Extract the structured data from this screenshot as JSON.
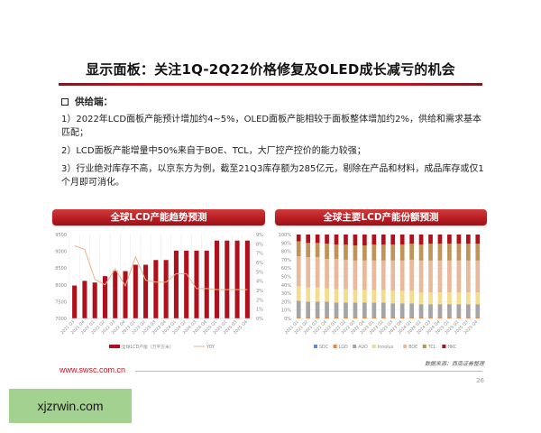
{
  "header": {
    "title": "显示面板：关注1Q-2Q22价格修复及OLED成长减亏的机会"
  },
  "section": {
    "label": "供给端：",
    "bullet_icon": "checkbox-square-icon",
    "paragraphs": [
      "1）2022年LCD面板产能预计增加约4~5%，OLED面板产能相较于面板整体增加约2%，供给和需求基本匹配；",
      "2）LCD面板产能增量中50%来自于BOE、TCL，大厂控产控价的能力较强；",
      "3）行业绝对库存不高，以京东方为例，截至21Q3库存额为285亿元，剔除在产品和材料，成品库存或仅1个月即可消化。"
    ]
  },
  "charts": {
    "left_title": "全球LCD产能趋势预测",
    "right_title": "全球主要LCD产能份额预测"
  },
  "chart_data": [
    {
      "type": "bar",
      "title": "全球LCD产能趋势预测",
      "categories": [
        "2021 Q3",
        "2021 Q4",
        "2022 Q1",
        "2022 Q2",
        "2022 Q3",
        "2022 Q4",
        "2023 Q1",
        "2023 Q2",
        "2023 Q3",
        "2023 Q4",
        "2024 Q1",
        "2024 Q2",
        "2024 Q3",
        "2024 Q4",
        "2025 Q1",
        "2025 Q2",
        "2025 Q3",
        "2025 Q4"
      ],
      "series": [
        {
          "name": "全球LCD产能（万平方米）",
          "type": "bar",
          "axis": "left",
          "color": "#b0101c",
          "values": [
            7980,
            8120,
            8070,
            8260,
            8420,
            8410,
            8600,
            8600,
            8740,
            8740,
            9020,
            9020,
            9020,
            9020,
            9320,
            9320,
            9320,
            9320
          ]
        },
        {
          "name": "YOY",
          "type": "line",
          "axis": "right",
          "color": "#e8b48a",
          "values": [
            7.8,
            7.4,
            4.2,
            3.6,
            5.3,
            3.5,
            6.6,
            4.1,
            3.9,
            3.9,
            4.8,
            4.8,
            3.2,
            3.2,
            3.1,
            3.1,
            3.1,
            3.1
          ]
        }
      ],
      "ylim": [
        7000,
        9500
      ],
      "yticks": [
        7000,
        7500,
        8000,
        8500,
        9000,
        9500
      ],
      "y2lim": [
        0,
        9
      ],
      "y2ticks": [
        "0%",
        "1%",
        "2%",
        "3%",
        "4%",
        "5%",
        "6%",
        "7%",
        "8%",
        "9%"
      ],
      "legend": [
        "全球LCD产能（万平方米）",
        "YOY"
      ],
      "legend_position": "bottom",
      "grid": true
    },
    {
      "type": "bar",
      "stacked": true,
      "percent": true,
      "title": "全球主要LCD产能份额预测",
      "categories": [
        "2021 Q1",
        "2021 Q2",
        "2021 Q3",
        "2021 Q4",
        "2022 Q1",
        "2022 Q2",
        "2022 Q3",
        "2022 Q4",
        "2023 Q1",
        "2023 Q2",
        "2023 Q3",
        "2023 Q4",
        "2024 Q1",
        "2024 Q2",
        "2024 Q3",
        "2024 Q4",
        "2025 Q1",
        "2025 Q2",
        "2025 Q3",
        "2025 Q4"
      ],
      "series": [
        {
          "name": "SDC",
          "color": "#5b8fc9",
          "values": [
            0,
            0,
            0,
            0,
            0,
            0,
            0,
            0,
            0,
            0,
            0,
            0,
            0,
            0,
            0,
            0,
            0,
            0,
            0,
            0
          ]
        },
        {
          "name": "LGD",
          "color": "#e8874a",
          "values": [
            2,
            2,
            2,
            2,
            2,
            2,
            2,
            2,
            2,
            2,
            2,
            2,
            2,
            2,
            2,
            2,
            2,
            2,
            2,
            2
          ]
        },
        {
          "name": "AUO",
          "color": "#a5a5a5",
          "values": [
            19,
            18,
            18,
            18,
            17,
            17,
            17,
            17,
            17,
            17,
            16,
            16,
            16,
            15,
            15,
            15,
            15,
            15,
            15,
            15
          ]
        },
        {
          "name": "Innolux",
          "color": "#f3dc8a",
          "values": [
            17,
            17,
            17,
            16,
            16,
            16,
            15,
            15,
            15,
            15,
            15,
            15,
            15,
            14,
            14,
            14,
            14,
            14,
            14,
            14
          ]
        },
        {
          "name": "BOE",
          "color": "#eab89a",
          "values": [
            36,
            36,
            36,
            35,
            36,
            35,
            35,
            35,
            35,
            35,
            36,
            36,
            37,
            38,
            38,
            38,
            38,
            38,
            38,
            38
          ]
        },
        {
          "name": "TCL",
          "color": "#bf9456",
          "values": [
            18,
            17,
            17,
            18,
            17,
            18,
            18,
            18,
            19,
            19,
            19,
            19,
            19,
            19,
            20,
            20,
            20,
            20,
            20,
            20
          ]
        },
        {
          "name": "HKC",
          "color": "#b0101c",
          "values": [
            8,
            10,
            10,
            11,
            12,
            12,
            13,
            13,
            12,
            12,
            12,
            12,
            11,
            12,
            11,
            11,
            11,
            11,
            11,
            11
          ]
        }
      ],
      "ylim": [
        0,
        100
      ],
      "yticks": [
        "0%",
        "10%",
        "20%",
        "30%",
        "40%",
        "50%",
        "60%",
        "70%",
        "80%",
        "90%",
        "100%"
      ],
      "legend": [
        "SDC",
        "LGD",
        "AUO",
        "Innolux",
        "BOE",
        "TCL",
        "HKC"
      ],
      "legend_position": "bottom",
      "grid": true
    }
  ],
  "footer": {
    "url": "www.swsc.com.cn",
    "source": "数据来源：西南证券整理",
    "page": "26"
  },
  "watermark": "xjzrwin.com"
}
